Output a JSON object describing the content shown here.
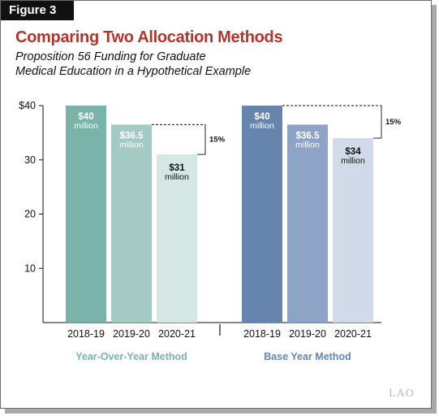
{
  "figure_label": "Figure 3",
  "title": "Comparing Two Allocation Methods",
  "subtitle_lines": [
    "Proposition 56 Funding for Graduate",
    "Medical Education in a Hypothetical Example"
  ],
  "logo_text": "LAO",
  "colors": {
    "title": "#b0352a",
    "yoy_group": "#7ab3a8",
    "base_group": "#6585ad"
  },
  "chart_data": {
    "type": "bar",
    "ylim": [
      0,
      40
    ],
    "yticks": [
      10,
      20,
      30,
      40
    ],
    "ytick_labels": [
      "10",
      "20",
      "30",
      "$40"
    ],
    "groups": [
      {
        "name": "Year-Over-Year Method",
        "categories": [
          "2018-19",
          "2019-20",
          "2020-21"
        ],
        "values": [
          40,
          36.5,
          31
        ],
        "value_labels": [
          "$40",
          "$36.5",
          "$31"
        ],
        "unit_label": "million",
        "bar_colors": [
          "#7ab3a8",
          "#a3cac3",
          "#d5e7e4"
        ],
        "label_colors": [
          "#ffffff",
          "#ffffff",
          "#111111"
        ],
        "annotation": "15%",
        "annotation_ref": 1
      },
      {
        "name": "Base Year Method",
        "categories": [
          "2018-19",
          "2019-20",
          "2020-21"
        ],
        "values": [
          40,
          36.5,
          34
        ],
        "value_labels": [
          "$40",
          "$36.5",
          "$34"
        ],
        "unit_label": "million",
        "bar_colors": [
          "#6585ad",
          "#8ea4c6",
          "#d0dae8"
        ],
        "label_colors": [
          "#ffffff",
          "#ffffff",
          "#111111"
        ],
        "annotation": "15%",
        "annotation_ref": 0
      }
    ]
  }
}
